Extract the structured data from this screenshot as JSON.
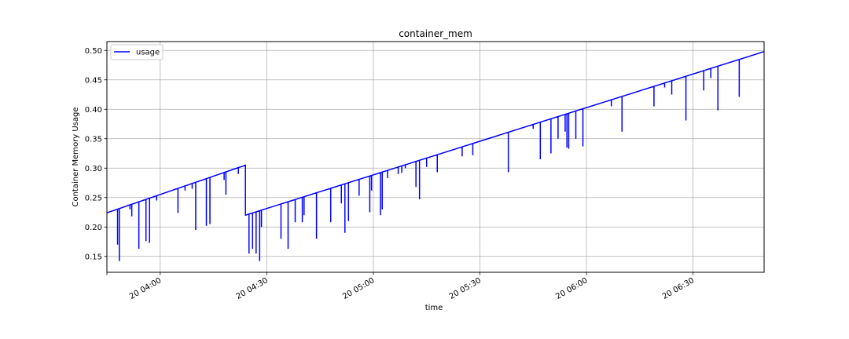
{
  "chart_data": {
    "type": "line",
    "title": "container_mem",
    "xlabel": "time",
    "ylabel": "Container Memory Usage",
    "x_unit": "minutes",
    "xlim": [
      "2000-01-20 03:45",
      "2000-01-20 06:50"
    ],
    "ylim": [
      0.123,
      0.515
    ],
    "y_ticks": [
      0.15,
      0.2,
      0.25,
      0.3,
      0.35,
      0.4,
      0.45,
      0.5
    ],
    "x_ticks": [
      {
        "t": "03:45",
        "label": ""
      },
      {
        "t": "04:00",
        "label": "20 04:00"
      },
      {
        "t": "04:30",
        "label": "20 04:30"
      },
      {
        "t": "05:00",
        "label": "20 05:00"
      },
      {
        "t": "05:30",
        "label": "20 05:30"
      },
      {
        "t": "06:00",
        "label": "20 06:00"
      },
      {
        "t": "06:30",
        "label": "20 06:30"
      }
    ],
    "grid": true,
    "legend": {
      "position": "top-left",
      "entries": [
        "usage"
      ]
    },
    "series": [
      {
        "name": "usage",
        "color": "#0000ff",
        "segments": [
          {
            "start": {
              "t": "03:44",
              "y": 0.222
            },
            "end": {
              "t": "04:24",
              "y": 0.305
            }
          },
          {
            "start": {
              "t": "04:24",
              "y": 0.22
            },
            "end": {
              "t": "06:50",
              "y": 0.498
            }
          }
        ],
        "dips": [
          {
            "t": "03:47",
            "y": 0.228
          },
          {
            "t": "03:48",
            "y": 0.17
          },
          {
            "t": "03:48.5",
            "y": 0.142
          },
          {
            "t": "03:51",
            "y": 0.238
          },
          {
            "t": "03:51.5",
            "y": 0.23
          },
          {
            "t": "03:52",
            "y": 0.218
          },
          {
            "t": "03:54",
            "y": 0.163
          },
          {
            "t": "03:56",
            "y": 0.176
          },
          {
            "t": "03:57",
            "y": 0.173
          },
          {
            "t": "03:59",
            "y": 0.245
          },
          {
            "t": "04:05",
            "y": 0.224
          },
          {
            "t": "04:07",
            "y": 0.262
          },
          {
            "t": "04:09",
            "y": 0.265
          },
          {
            "t": "04:10",
            "y": 0.195
          },
          {
            "t": "04:13",
            "y": 0.202
          },
          {
            "t": "04:14",
            "y": 0.205
          },
          {
            "t": "04:18",
            "y": 0.28
          },
          {
            "t": "04:18.5",
            "y": 0.255
          },
          {
            "t": "04:22",
            "y": 0.29
          },
          {
            "t": "04:25",
            "y": 0.155
          },
          {
            "t": "04:26",
            "y": 0.163
          },
          {
            "t": "04:27",
            "y": 0.155
          },
          {
            "t": "04:28",
            "y": 0.142
          },
          {
            "t": "04:28.5",
            "y": 0.2
          },
          {
            "t": "04:34",
            "y": 0.18
          },
          {
            "t": "04:36",
            "y": 0.163
          },
          {
            "t": "04:38",
            "y": 0.208
          },
          {
            "t": "04:40",
            "y": 0.208
          },
          {
            "t": "04:40.5",
            "y": 0.22
          },
          {
            "t": "04:44",
            "y": 0.18
          },
          {
            "t": "04:48",
            "y": 0.208
          },
          {
            "t": "04:51",
            "y": 0.24
          },
          {
            "t": "04:52",
            "y": 0.19
          },
          {
            "t": "04:53",
            "y": 0.21
          },
          {
            "t": "04:56",
            "y": 0.253
          },
          {
            "t": "04:59",
            "y": 0.225
          },
          {
            "t": "04:59.5",
            "y": 0.262
          },
          {
            "t": "05:02",
            "y": 0.22
          },
          {
            "t": "05:02.5",
            "y": 0.23
          },
          {
            "t": "05:04",
            "y": 0.283
          },
          {
            "t": "05:07",
            "y": 0.29
          },
          {
            "t": "05:08",
            "y": 0.292
          },
          {
            "t": "05:09",
            "y": 0.3
          },
          {
            "t": "05:12",
            "y": 0.268
          },
          {
            "t": "05:13",
            "y": 0.247
          },
          {
            "t": "05:15",
            "y": 0.302
          },
          {
            "t": "05:18",
            "y": 0.293
          },
          {
            "t": "05:25",
            "y": 0.32
          },
          {
            "t": "05:28",
            "y": 0.322
          },
          {
            "t": "05:38",
            "y": 0.293
          },
          {
            "t": "05:45",
            "y": 0.367
          },
          {
            "t": "05:47",
            "y": 0.315
          },
          {
            "t": "05:50",
            "y": 0.325
          },
          {
            "t": "05:52",
            "y": 0.35
          },
          {
            "t": "05:54",
            "y": 0.362
          },
          {
            "t": "05:54.5",
            "y": 0.335
          },
          {
            "t": "05:55",
            "y": 0.333
          },
          {
            "t": "05:57",
            "y": 0.35
          },
          {
            "t": "05:59",
            "y": 0.337
          },
          {
            "t": "06:00",
            "y": 0.402
          },
          {
            "t": "06:07",
            "y": 0.405
          },
          {
            "t": "06:10",
            "y": 0.362
          },
          {
            "t": "06:19",
            "y": 0.405
          },
          {
            "t": "06:22",
            "y": 0.437
          },
          {
            "t": "06:24",
            "y": 0.425
          },
          {
            "t": "06:28",
            "y": 0.381
          },
          {
            "t": "06:33",
            "y": 0.432
          },
          {
            "t": "06:35",
            "y": 0.453
          },
          {
            "t": "06:37",
            "y": 0.398
          },
          {
            "t": "06:43",
            "y": 0.421
          }
        ]
      }
    ]
  }
}
